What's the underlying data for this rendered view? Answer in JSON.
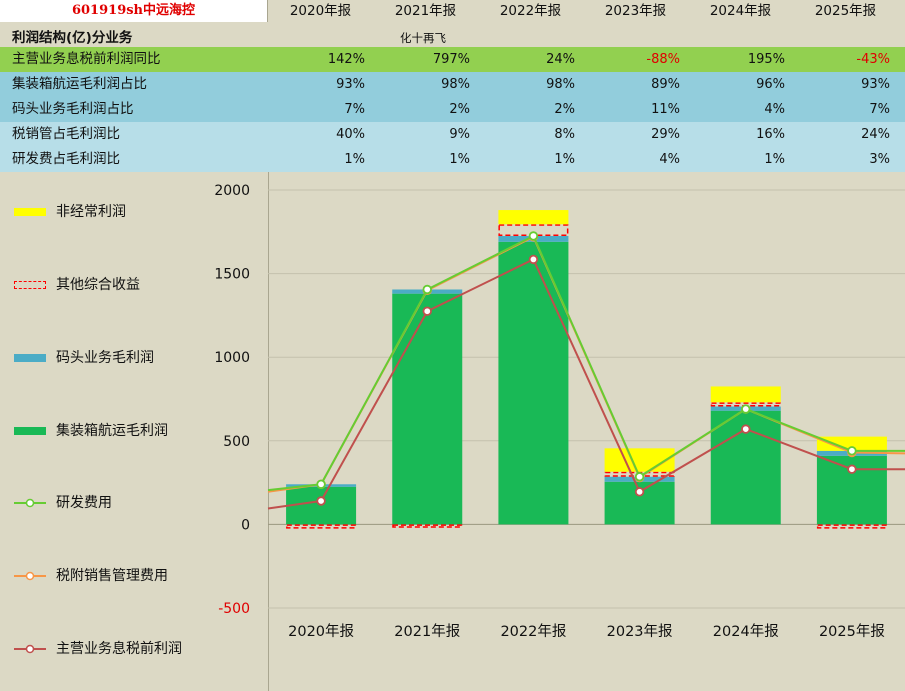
{
  "header": {
    "ticker": "601919sh中远海控",
    "years": [
      "2020年报",
      "2021年报",
      "2022年报",
      "2023年报",
      "2024年报",
      "2025年报"
    ]
  },
  "section": {
    "title": "利润结构(亿)分业务",
    "note": "化十再飞"
  },
  "metrics": [
    {
      "label": "主营业务息税前利润同比",
      "values": [
        "142%",
        "797%",
        "24%",
        "-88%",
        "195%",
        "-43%"
      ],
      "negative": [
        false,
        false,
        false,
        true,
        false,
        true
      ],
      "bg": "#92d050"
    },
    {
      "label": "集装箱航运毛利润占比",
      "values": [
        "93%",
        "98%",
        "98%",
        "89%",
        "96%",
        "93%"
      ],
      "bg": "#92cddc"
    },
    {
      "label": "码头业务毛利润占比",
      "values": [
        "7%",
        "2%",
        "2%",
        "11%",
        "4%",
        "7%"
      ],
      "bg": "#92cddc"
    },
    {
      "label": "税销管占毛利润比",
      "values": [
        "40%",
        "9%",
        "8%",
        "29%",
        "16%",
        "24%"
      ],
      "bg": "#b7dee8"
    },
    {
      "label": "研发费占毛利润比",
      "values": [
        "1%",
        "1%",
        "1%",
        "4%",
        "1%",
        "3%"
      ],
      "bg": "#b7dee8"
    }
  ],
  "colors": {
    "nonrecurring": "#ffff00",
    "oci": "#ff0000",
    "terminal": "#4bacc6",
    "shipping": "#19b956",
    "rnd": "#66cc33",
    "selling": "#f79646",
    "ebit": "#c0504d"
  },
  "legend": [
    {
      "key": "nonrecurring",
      "label": "非经常利润",
      "kind": "fill"
    },
    {
      "key": "oci",
      "label": "其他综合收益",
      "kind": "dashed"
    },
    {
      "key": "terminal",
      "label": "码头业务毛利润",
      "kind": "fill"
    },
    {
      "key": "shipping",
      "label": "集装箱航运毛利润",
      "kind": "fill"
    },
    {
      "key": "rnd",
      "label": "研发费用",
      "kind": "line"
    },
    {
      "key": "selling",
      "label": "税附销售管理费用",
      "kind": "line"
    },
    {
      "key": "ebit",
      "label": "主营业务息税前利润",
      "kind": "line"
    }
  ],
  "chart_data": {
    "type": "bar",
    "categories": [
      "2020年报",
      "2021年报",
      "2022年报",
      "2023年报",
      "2024年报",
      "2025年报"
    ],
    "ylim": [
      -500,
      2000
    ],
    "yticks": [
      -500,
      0,
      500,
      1000,
      1500,
      2000
    ],
    "grid": true,
    "stacked_series": [
      {
        "key": "shipping",
        "name": "集装箱航运毛利润",
        "values": [
          225,
          1380,
          1690,
          255,
          680,
          410
        ]
      },
      {
        "key": "terminal",
        "name": "码头业务毛利润",
        "values": [
          15,
          25,
          35,
          30,
          25,
          30
        ]
      },
      {
        "key": "oci",
        "name": "其他综合收益",
        "values": [
          -25,
          -20,
          70,
          30,
          25,
          -25
        ]
      },
      {
        "key": "nonrecurring",
        "name": "非经常利润",
        "values": [
          0,
          0,
          85,
          140,
          95,
          85
        ]
      }
    ],
    "line_series": [
      {
        "key": "selling",
        "name": "税附销售管理费用",
        "values": [
          240,
          1400,
          1720,
          280,
          690,
          430
        ]
      },
      {
        "key": "rnd",
        "name": "研发费用",
        "values": [
          240,
          1405,
          1725,
          285,
          690,
          440
        ]
      },
      {
        "key": "ebit",
        "name": "主营业务息税前利润",
        "values": [
          140,
          1275,
          1585,
          195,
          570,
          330
        ]
      }
    ],
    "line_edges": {
      "left": {
        "selling": 195,
        "rnd": 205,
        "ebit": 95
      },
      "right": {
        "selling": 425,
        "rnd": 440,
        "ebit": 330
      }
    }
  }
}
